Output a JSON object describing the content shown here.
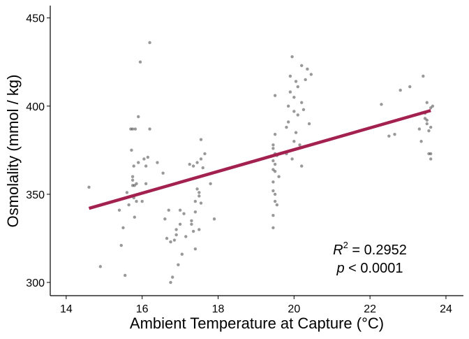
{
  "chart_data": {
    "type": "scatter",
    "x_label": "Ambient Temperature at Capture (°C)",
    "y_label": "Osmolality (mmol / kg)",
    "xlim": [
      13.58,
      24.46
    ],
    "ylim": [
      292.5,
      457
    ],
    "xticks": [
      14,
      16,
      18,
      20,
      22,
      24
    ],
    "yticks": [
      300,
      350,
      400,
      450
    ],
    "points": {
      "color": "#333333",
      "x": [
        14.6,
        14.9,
        15.4,
        15.45,
        15.5,
        15.55,
        15.6,
        15.65,
        15.7,
        15.72,
        15.75,
        15.75,
        15.75,
        15.75,
        15.78,
        15.78,
        15.8,
        15.8,
        15.82,
        15.85,
        15.85,
        15.9,
        15.9,
        15.95,
        16.0,
        16.05,
        16.1,
        16.1,
        16.15,
        16.2,
        16.2,
        16.4,
        16.55,
        16.6,
        16.65,
        16.7,
        16.75,
        16.75,
        16.8,
        16.85,
        16.9,
        16.95,
        17.0,
        17.0,
        17.05,
        17.1,
        17.15,
        16.9,
        17.25,
        17.3,
        17.3,
        17.35,
        17.35,
        17.4,
        17.4,
        17.45,
        17.45,
        17.5,
        17.5,
        17.5,
        17.55,
        17.55,
        17.55,
        17.6,
        17.65,
        17.8,
        17.9,
        17.4,
        19.45,
        19.45,
        19.45,
        19.45,
        19.45,
        19.45,
        19.45,
        19.5,
        19.5,
        19.5,
        19.5,
        19.5,
        19.5,
        19.55,
        19.55,
        19.6,
        19.45,
        19.5,
        19.8,
        19.8,
        19.85,
        19.85,
        19.9,
        19.9,
        19.95,
        20.0,
        20.0,
        20.0,
        20.05,
        20.1,
        20.1,
        20.15,
        20.2,
        20.2,
        20.2,
        20.25,
        20.3,
        20.35,
        20.4,
        20.45,
        20.05,
        19.95,
        22.3,
        22.5,
        22.65,
        22.8,
        23.05,
        23.2,
        23.3,
        23.35,
        23.4,
        23.45,
        23.45,
        23.5,
        23.5,
        23.55,
        23.55,
        23.6,
        23.6,
        23.6,
        23.65,
        23.5,
        23.6
      ],
      "y": [
        354,
        309,
        341,
        321,
        331,
        304,
        351,
        344,
        387,
        375,
        387,
        360,
        358,
        355,
        366,
        348,
        337,
        355,
        387,
        356,
        346,
        394,
        368,
        425,
        346,
        370,
        356,
        366,
        371,
        387,
        436,
        368,
        362,
        336,
        325,
        341,
        323,
        300,
        303,
        324,
        327,
        310,
        341,
        333,
        316,
        339,
        326,
        330,
        367,
        335,
        333,
        366,
        329,
        319,
        346,
        353,
        368,
        351,
        349,
        330,
        345,
        370,
        381,
        365,
        373,
        356,
        336,
        340,
        331,
        338,
        352,
        357,
        364,
        376,
        378,
        346,
        350,
        363,
        373,
        384,
        406,
        344,
        372,
        360,
        369,
        367,
        373,
        388,
        391,
        400,
        408,
        417,
        428,
        380,
        397,
        405,
        385,
        411,
        395,
        378,
        366,
        402,
        423,
        398,
        415,
        421,
        390,
        418,
        414,
        370,
        401,
        383,
        384,
        409,
        411,
        395,
        387,
        380,
        417,
        396,
        393,
        390,
        402,
        386,
        373,
        370,
        388,
        399,
        400,
        392,
        373
      ]
    },
    "fit": {
      "color": "#a3214f",
      "x": [
        14.6,
        23.6
      ],
      "y": [
        342,
        397.5
      ]
    },
    "annotation": {
      "r2_symbol": "R",
      "r2_exponent": "2",
      "r2_value": " = 0.2952",
      "p_symbol": "p",
      "p_value": " < 0.0001"
    }
  }
}
